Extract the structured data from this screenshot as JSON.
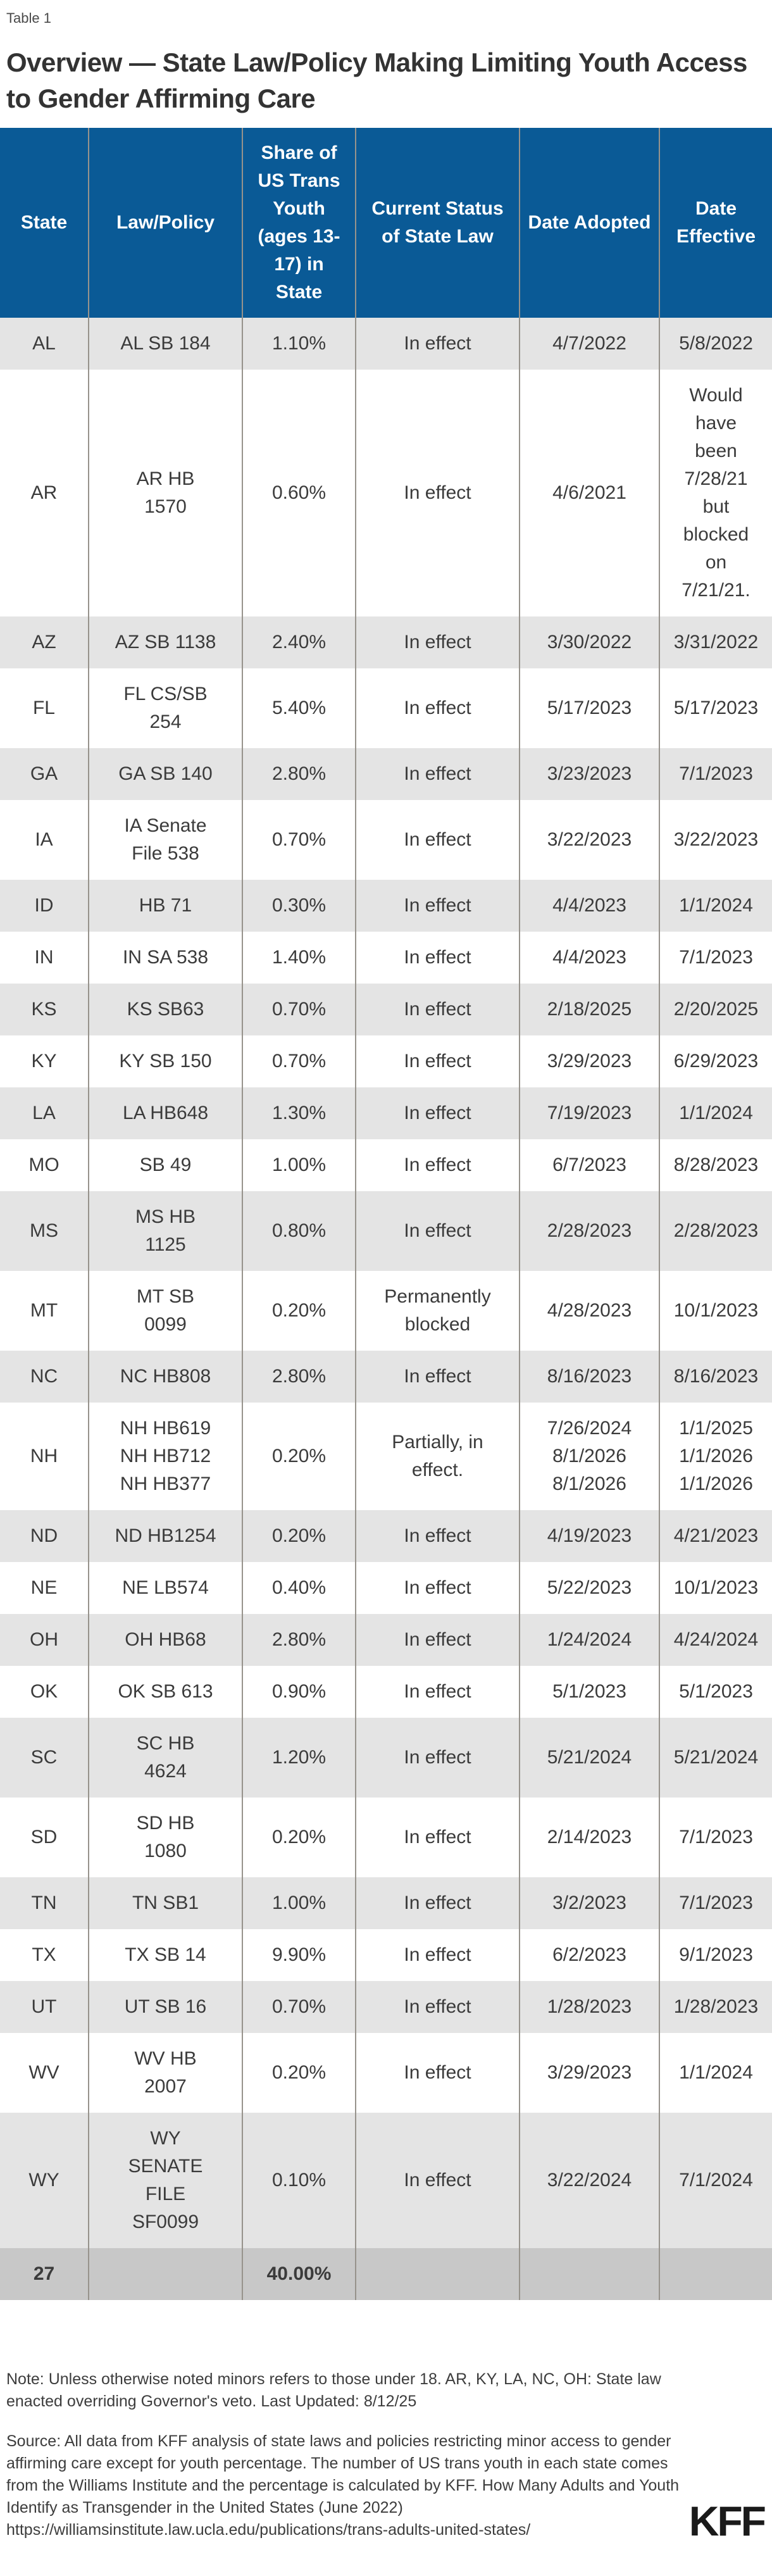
{
  "page": {
    "table_label": "Table 1",
    "title": "Overview — State Law/Policy Making Limiting Youth Access to Gender Affirming Care"
  },
  "colors": {
    "header_bg": "#0a5a96",
    "header_text": "#ffffff",
    "alt_row_bg": "#e4e4e4",
    "total_row_bg": "#c8c8c8",
    "grid_line": "#97938c",
    "body_text": "#3b3b3b",
    "logo_text": "#1a1a1a"
  },
  "chart_data": {
    "type": "table",
    "title": "Overview — State Law/Policy Making Limiting Youth Access to Gender Affirming Care",
    "columns": [
      "State",
      "Law/Policy",
      "Share of US Trans Youth (ages 13-17) in State",
      "Current Status of State Law",
      "Date Adopted",
      "Date Effective"
    ],
    "rows": [
      {
        "state": "AL",
        "law": "AL SB 184",
        "share": "1.10%",
        "status": "In effect",
        "adopted": "4/7/2022",
        "effective": "5/8/2022"
      },
      {
        "state": "AR",
        "law": "AR HB\n1570",
        "share": "0.60%",
        "status": "In effect",
        "adopted": "4/6/2021",
        "effective": "Would\nhave\nbeen\n7/28/21\nbut\nblocked\non\n7/21/21."
      },
      {
        "state": "AZ",
        "law": "AZ SB 1138",
        "share": "2.40%",
        "status": "In effect",
        "adopted": "3/30/2022",
        "effective": "3/31/2022"
      },
      {
        "state": "FL",
        "law": "FL CS/SB\n254",
        "share": "5.40%",
        "status": "In effect",
        "adopted": "5/17/2023",
        "effective": "5/17/2023"
      },
      {
        "state": "GA",
        "law": "GA SB 140",
        "share": "2.80%",
        "status": "In effect",
        "adopted": "3/23/2023",
        "effective": "7/1/2023"
      },
      {
        "state": "IA",
        "law": "IA Senate\nFile 538",
        "share": "0.70%",
        "status": "In effect",
        "adopted": "3/22/2023",
        "effective": "3/22/2023"
      },
      {
        "state": "ID",
        "law": "HB 71",
        "share": "0.30%",
        "status": "In effect",
        "adopted": "4/4/2023",
        "effective": "1/1/2024"
      },
      {
        "state": "IN",
        "law": "IN SA 538",
        "share": "1.40%",
        "status": "In effect",
        "adopted": "4/4/2023",
        "effective": "7/1/2023"
      },
      {
        "state": "KS",
        "law": "KS SB63",
        "share": "0.70%",
        "status": "In effect",
        "adopted": "2/18/2025",
        "effective": "2/20/2025"
      },
      {
        "state": "KY",
        "law": "KY SB 150",
        "share": "0.70%",
        "status": "In effect",
        "adopted": "3/29/2023",
        "effective": "6/29/2023"
      },
      {
        "state": "LA",
        "law": "LA HB648",
        "share": "1.30%",
        "status": "In effect",
        "adopted": "7/19/2023",
        "effective": "1/1/2024"
      },
      {
        "state": "MO",
        "law": "SB 49",
        "share": "1.00%",
        "status": "In effect",
        "adopted": "6/7/2023",
        "effective": "8/28/2023"
      },
      {
        "state": "MS",
        "law": "MS HB\n1125",
        "share": "0.80%",
        "status": "In effect",
        "adopted": "2/28/2023",
        "effective": "2/28/2023"
      },
      {
        "state": "MT",
        "law": "MT SB\n0099",
        "share": "0.20%",
        "status": "Permanently\nblocked",
        "adopted": "4/28/2023",
        "effective": "10/1/2023"
      },
      {
        "state": "NC",
        "law": "NC HB808",
        "share": "2.80%",
        "status": "In effect",
        "adopted": "8/16/2023",
        "effective": "8/16/2023"
      },
      {
        "state": "NH",
        "law": "NH HB619\nNH HB712\nNH HB377",
        "share": "0.20%",
        "status": "Partially, in\neffect.",
        "adopted": "7/26/2024\n8/1/2026\n8/1/2026",
        "effective": "1/1/2025\n1/1/2026\n1/1/2026"
      },
      {
        "state": "ND",
        "law": "ND HB1254",
        "share": "0.20%",
        "status": "In effect",
        "adopted": "4/19/2023",
        "effective": "4/21/2023"
      },
      {
        "state": "NE",
        "law": "NE LB574",
        "share": "0.40%",
        "status": "In effect",
        "adopted": "5/22/2023",
        "effective": "10/1/2023"
      },
      {
        "state": "OH",
        "law": "OH HB68",
        "share": "2.80%",
        "status": "In effect",
        "adopted": "1/24/2024",
        "effective": "4/24/2024"
      },
      {
        "state": "OK",
        "law": "OK SB 613",
        "share": "0.90%",
        "status": "In effect",
        "adopted": "5/1/2023",
        "effective": "5/1/2023"
      },
      {
        "state": "SC",
        "law": "SC HB\n4624",
        "share": "1.20%",
        "status": "In effect",
        "adopted": "5/21/2024",
        "effective": "5/21/2024"
      },
      {
        "state": "SD",
        "law": "SD HB\n1080",
        "share": "0.20%",
        "status": "In effect",
        "adopted": "2/14/2023",
        "effective": "7/1/2023"
      },
      {
        "state": "TN",
        "law": "TN SB1",
        "share": "1.00%",
        "status": "In effect",
        "adopted": "3/2/2023",
        "effective": "7/1/2023"
      },
      {
        "state": "TX",
        "law": "TX SB 14",
        "share": "9.90%",
        "status": "In effect",
        "adopted": "6/2/2023",
        "effective": "9/1/2023"
      },
      {
        "state": "UT",
        "law": "UT SB 16",
        "share": "0.70%",
        "status": "In effect",
        "adopted": "1/28/2023",
        "effective": "1/28/2023"
      },
      {
        "state": "WV",
        "law": "WV HB\n2007",
        "share": "0.20%",
        "status": "In effect",
        "adopted": "3/29/2023",
        "effective": "1/1/2024"
      },
      {
        "state": "WY",
        "law": "WY\nSENATE\nFILE\nSF0099",
        "share": "0.10%",
        "status": "In effect",
        "adopted": "3/22/2024",
        "effective": "7/1/2024"
      }
    ],
    "total_row": {
      "state": "27",
      "law": "",
      "share": "40.00%",
      "status": "",
      "adopted": "",
      "effective": ""
    }
  },
  "footer": {
    "note": "Note: Unless otherwise noted minors refers to those under 18. AR, KY, LA, NC, OH: State law enacted overriding Governor's veto. Last Updated: 8/12/25",
    "source_text": "Source: All data from KFF analysis of state laws and policies restricting minor access to gender affirming care except for youth percentage. The number of US trans youth in each state comes from the Williams Institute and the percentage is calculated by KFF. How Many Adults and Youth Identify as Transgender in the United States (June 2022)",
    "source_url": "https://williamsinstitute.law.ucla.edu/publications/trans-adults-united-states/",
    "logo": "KFF"
  }
}
